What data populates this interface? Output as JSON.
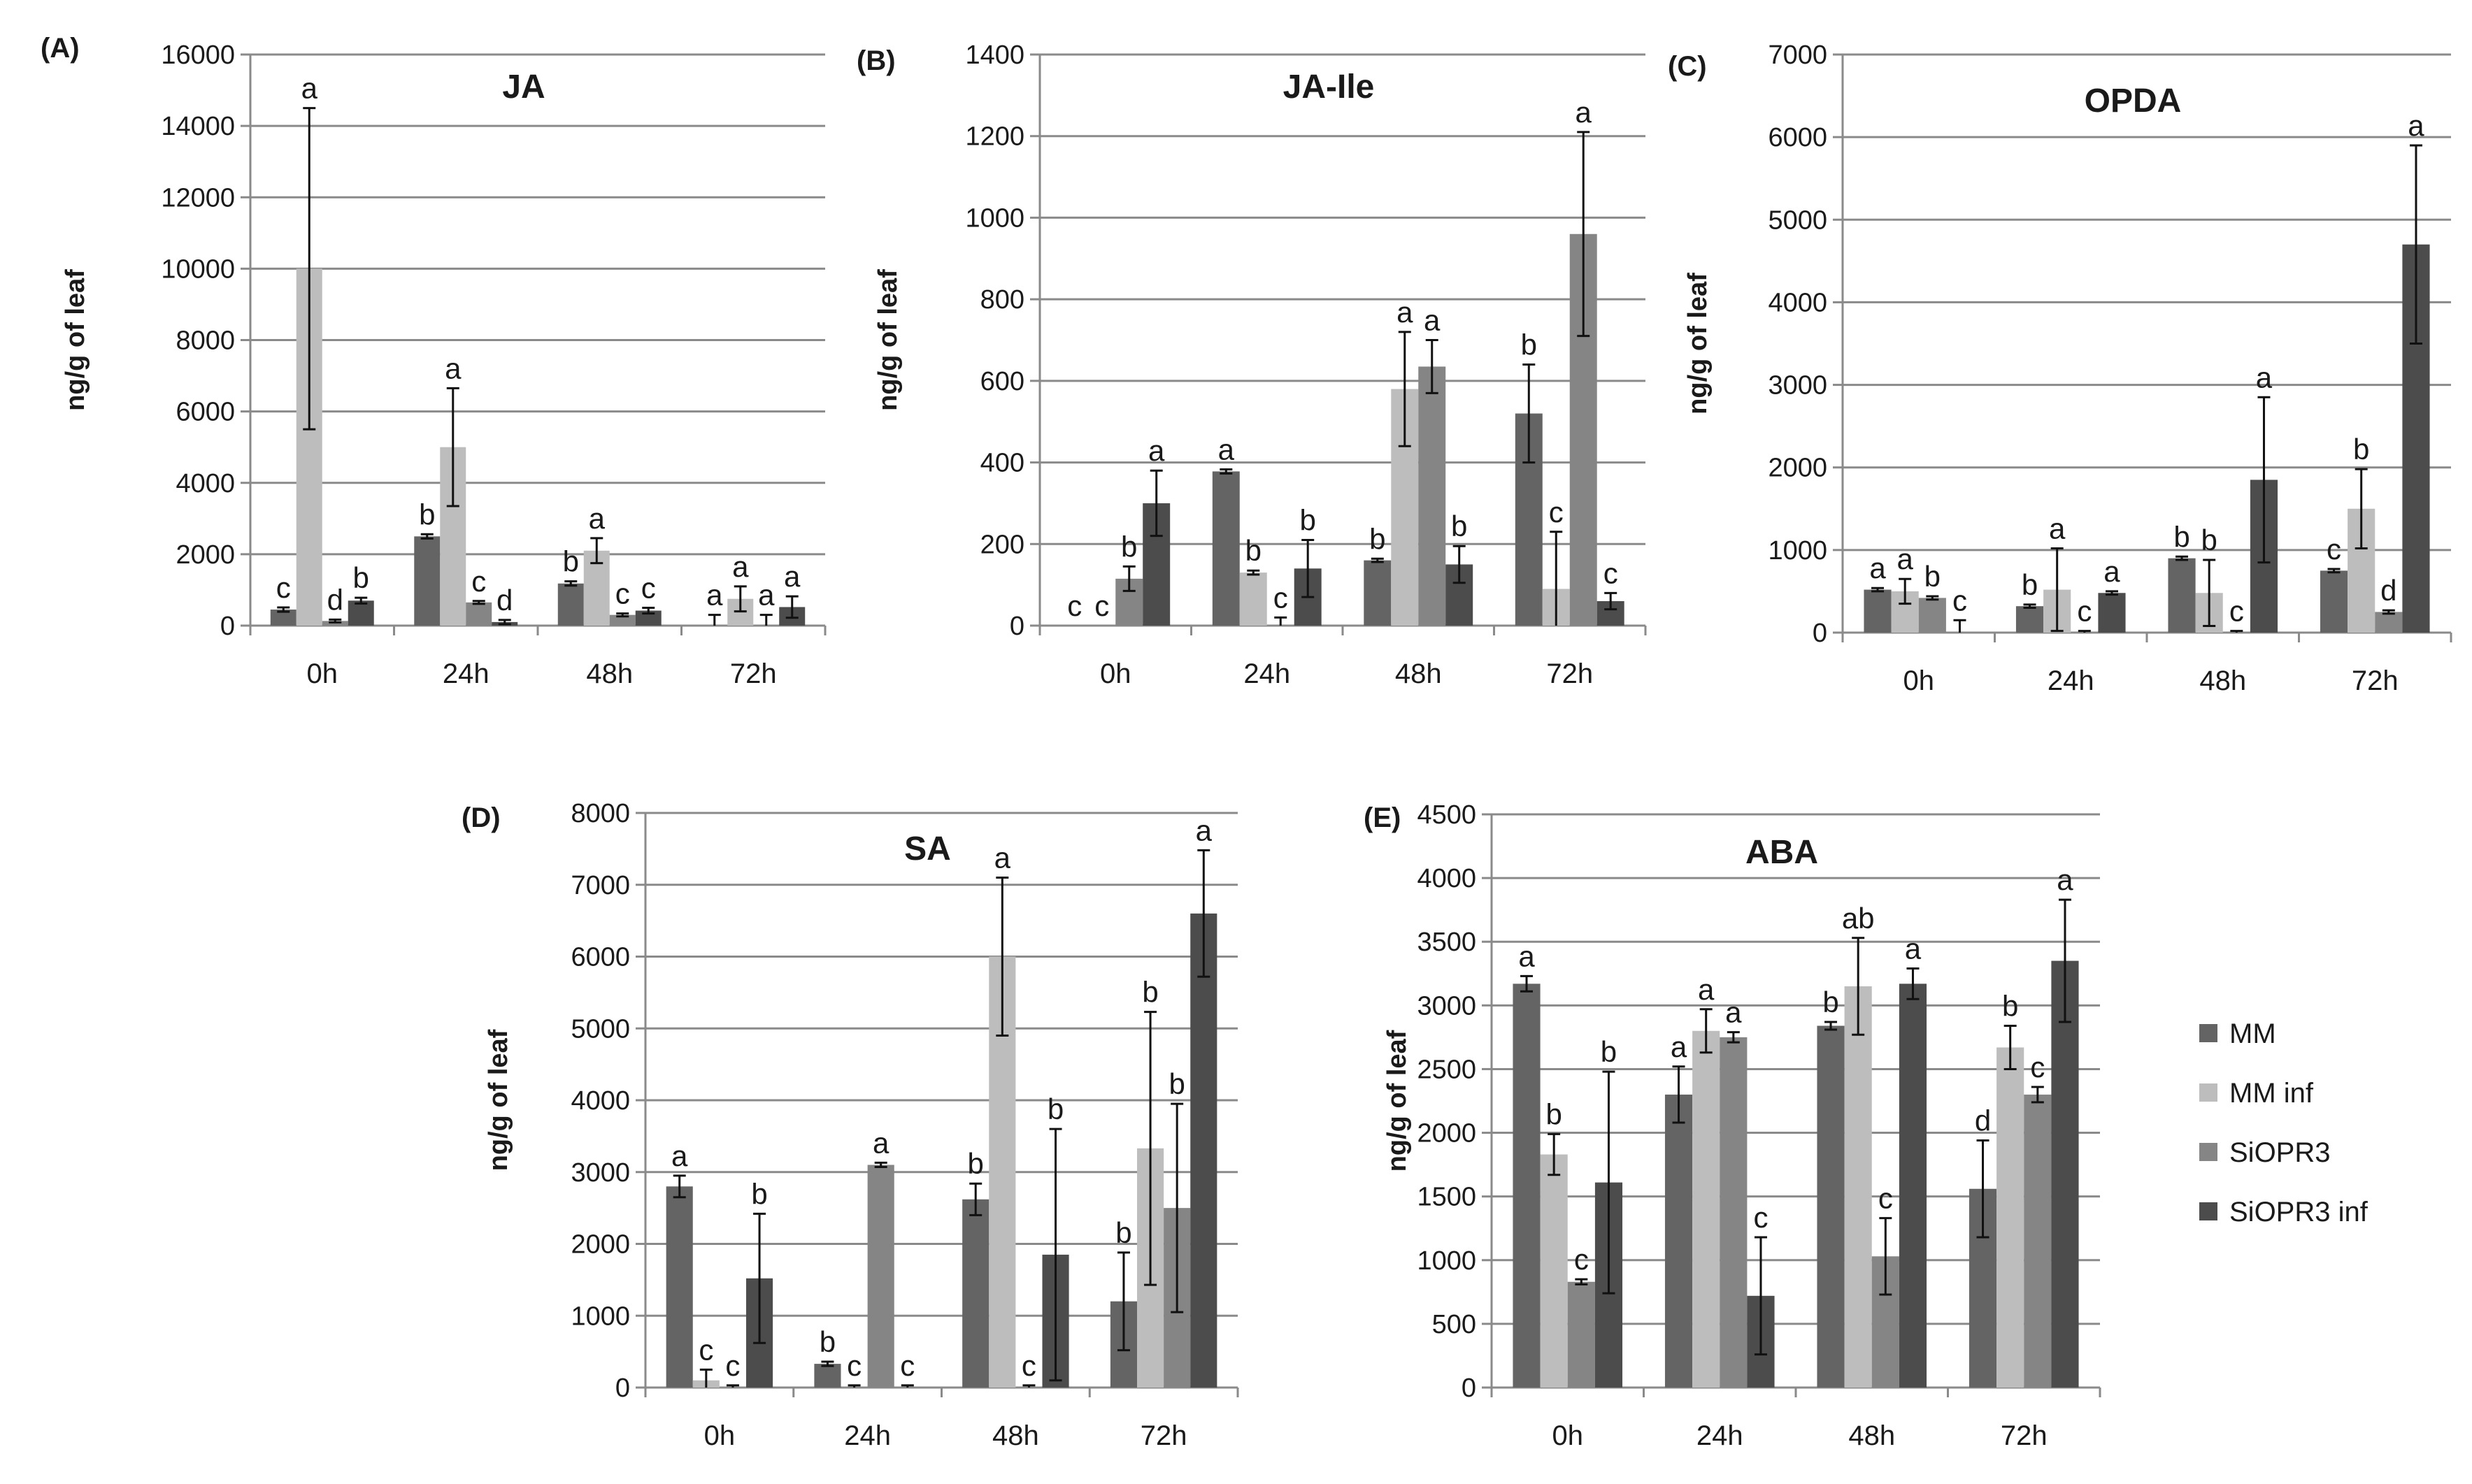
{
  "figure": {
    "legend": [
      {
        "name": "MM",
        "color": "#646464"
      },
      {
        "name": "MM inf",
        "color": "#bdbdbd"
      },
      {
        "name": "SiOPR3",
        "color": "#858585"
      },
      {
        "name": "SiOPR3 inf",
        "color": "#4c4c4c"
      }
    ]
  },
  "chart_data": [
    {
      "panel": "(A)",
      "type": "bar",
      "title": "JA",
      "ylabel": "ng/g of leaf",
      "categories": [
        "0h",
        "24h",
        "48h",
        "72h"
      ],
      "ylim": [
        0,
        16000
      ],
      "yticks": [
        "0",
        "2000",
        "4000",
        "6000",
        "8000",
        "10000",
        "12000",
        "14000",
        "16000"
      ],
      "series": [
        {
          "name": "MM",
          "values": [
            450,
            2500,
            1180,
            0
          ],
          "errors": [
            60,
            60,
            60,
            300
          ],
          "letters": [
            "c",
            "b",
            "b",
            "a"
          ]
        },
        {
          "name": "MM inf",
          "values": [
            10000,
            5000,
            2100,
            750
          ],
          "errors": [
            4500,
            1650,
            350,
            350
          ],
          "letters": [
            "a",
            "a",
            "a",
            "a"
          ]
        },
        {
          "name": "SiOPR3",
          "values": [
            130,
            650,
            300,
            0
          ],
          "errors": [
            40,
            40,
            40,
            300
          ],
          "letters": [
            "d",
            "c",
            "c",
            "a"
          ]
        },
        {
          "name": "SiOPR3 inf",
          "values": [
            700,
            100,
            420,
            520
          ],
          "errors": [
            80,
            60,
            80,
            300
          ],
          "letters": [
            "b",
            "d",
            "c",
            "a"
          ]
        }
      ]
    },
    {
      "panel": "(B)",
      "type": "bar",
      "title": "JA-Ile",
      "ylabel": "ng/g of leaf",
      "categories": [
        "0h",
        "24h",
        "48h",
        "72h"
      ],
      "ylim": [
        0,
        1400
      ],
      "yticks": [
        "0",
        "200",
        "400",
        "600",
        "800",
        "1000",
        "1200",
        "1400"
      ],
      "series": [
        {
          "name": "MM",
          "values": [
            0,
            378,
            160,
            520
          ],
          "errors": [
            0,
            5,
            4,
            120
          ],
          "letters": [
            "c",
            "a",
            "b",
            "b"
          ]
        },
        {
          "name": "MM inf",
          "values": [
            0,
            130,
            580,
            90
          ],
          "errors": [
            0,
            5,
            140,
            140
          ],
          "letters": [
            "c",
            "b",
            "a",
            "c"
          ]
        },
        {
          "name": "SiOPR3",
          "values": [
            115,
            0,
            635,
            960
          ],
          "errors": [
            30,
            20,
            65,
            250
          ],
          "letters": [
            "b",
            "c",
            "a",
            "a"
          ]
        },
        {
          "name": "SiOPR3 inf",
          "values": [
            300,
            140,
            150,
            60
          ],
          "errors": [
            80,
            70,
            45,
            20
          ],
          "letters": [
            "a",
            "b",
            "b",
            "c"
          ]
        }
      ]
    },
    {
      "panel": "(C)",
      "type": "bar",
      "title": "OPDA",
      "ylabel": "ng/g of leaf",
      "categories": [
        "0h",
        "24h",
        "48h",
        "72h"
      ],
      "ylim": [
        0,
        7000
      ],
      "yticks": [
        "0",
        "1000",
        "2000",
        "3000",
        "4000",
        "5000",
        "6000",
        "7000"
      ],
      "series": [
        {
          "name": "MM",
          "values": [
            520,
            320,
            900,
            750
          ],
          "errors": [
            20,
            20,
            20,
            20
          ],
          "letters": [
            "a",
            "b",
            "b",
            "c"
          ]
        },
        {
          "name": "MM inf",
          "values": [
            500,
            520,
            480,
            1500
          ],
          "errors": [
            150,
            500,
            400,
            480
          ],
          "letters": [
            "a",
            "a",
            "b",
            "b"
          ]
        },
        {
          "name": "SiOPR3",
          "values": [
            420,
            0,
            0,
            250
          ],
          "errors": [
            20,
            20,
            20,
            20
          ],
          "letters": [
            "b",
            "c",
            "c",
            "d"
          ]
        },
        {
          "name": "SiOPR3 inf",
          "values": [
            0,
            480,
            1850,
            4700
          ],
          "errors": [
            150,
            20,
            1000,
            1200
          ],
          "letters": [
            "c",
            "a",
            "a",
            "a"
          ]
        }
      ]
    },
    {
      "panel": "(D)",
      "type": "bar",
      "title": "SA",
      "ylabel": "ng/g of leaf",
      "categories": [
        "0h",
        "24h",
        "48h",
        "72h"
      ],
      "ylim": [
        0,
        8000
      ],
      "yticks": [
        "0",
        "1000",
        "2000",
        "3000",
        "4000",
        "5000",
        "6000",
        "7000",
        "8000"
      ],
      "series": [
        {
          "name": "MM",
          "values": [
            2800,
            330,
            2620,
            1200
          ],
          "errors": [
            150,
            30,
            220,
            680
          ],
          "letters": [
            "a",
            "b",
            "b",
            "b"
          ]
        },
        {
          "name": "MM inf",
          "values": [
            100,
            0,
            6000,
            3330
          ],
          "errors": [
            150,
            30,
            1100,
            1900
          ],
          "letters": [
            "c",
            "c",
            "a",
            "b"
          ]
        },
        {
          "name": "SiOPR3",
          "values": [
            0,
            3100,
            0,
            2500
          ],
          "errors": [
            30,
            30,
            30,
            1450
          ],
          "letters": [
            "c",
            "a",
            "c",
            "b"
          ]
        },
        {
          "name": "SiOPR3 inf",
          "values": [
            1520,
            0,
            1850,
            6600
          ],
          "errors": [
            900,
            30,
            1750,
            880
          ],
          "letters": [
            "b",
            "c",
            "b",
            "a"
          ]
        }
      ]
    },
    {
      "panel": "(E)",
      "type": "bar",
      "title": "ABA",
      "ylabel": "ng/g of leaf",
      "categories": [
        "0h",
        "24h",
        "48h",
        "72h"
      ],
      "ylim": [
        0,
        4500
      ],
      "yticks": [
        "0",
        "500",
        "1000",
        "1500",
        "2000",
        "2500",
        "3000",
        "3500",
        "4000",
        "4500"
      ],
      "series": [
        {
          "name": "MM",
          "values": [
            3170,
            2300,
            2840,
            1560
          ],
          "errors": [
            60,
            220,
            30,
            380
          ],
          "letters": [
            "a",
            "a",
            "b",
            "d"
          ]
        },
        {
          "name": "MM inf",
          "values": [
            1830,
            2800,
            3150,
            2670
          ],
          "errors": [
            160,
            170,
            380,
            170
          ],
          "letters": [
            "b",
            "a",
            "ab",
            "b"
          ]
        },
        {
          "name": "SiOPR3",
          "values": [
            830,
            2750,
            1030,
            2300
          ],
          "errors": [
            20,
            40,
            300,
            60
          ],
          "letters": [
            "c",
            "a",
            "c",
            "c"
          ]
        },
        {
          "name": "SiOPR3 inf",
          "values": [
            1610,
            720,
            3170,
            3350
          ],
          "errors": [
            870,
            460,
            120,
            480
          ],
          "letters": [
            "b",
            "c",
            "a",
            "a"
          ]
        }
      ]
    }
  ]
}
